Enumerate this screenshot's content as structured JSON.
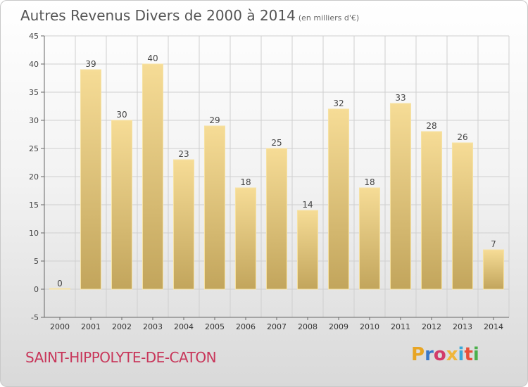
{
  "header": {
    "title": "Autres Revenus Divers de 2000 à 2014",
    "unit": "(en milliers d'€)"
  },
  "footer": {
    "commune": "SAINT-HIPPOLYTE-DE-CATON"
  },
  "logo": {
    "text": "Proxiti",
    "letters": [
      {
        "ch": "P",
        "color": "#e8a524"
      },
      {
        "ch": "r",
        "color": "#3a78c8"
      },
      {
        "ch": "o",
        "color": "#d23b6a"
      },
      {
        "ch": "x",
        "color": "#f0b63a"
      },
      {
        "ch": "i",
        "color": "#3aa9d8"
      },
      {
        "ch": "t",
        "color": "#e8503a"
      },
      {
        "ch": "i",
        "color": "#4bb04b"
      }
    ]
  },
  "chart_data": {
    "type": "bar",
    "title": "Autres Revenus Divers de 2000 à 2014",
    "ylabel": "",
    "xlabel": "",
    "categories": [
      "2000",
      "2001",
      "2002",
      "2003",
      "2004",
      "2005",
      "2006",
      "2007",
      "2008",
      "2009",
      "2010",
      "2011",
      "2012",
      "2013",
      "2014"
    ],
    "values": [
      0,
      39,
      30,
      40,
      23,
      29,
      18,
      25,
      14,
      32,
      18,
      33,
      28,
      26,
      7
    ],
    "ylim": [
      -5,
      45
    ],
    "yticks": [
      -5,
      0,
      5,
      10,
      15,
      20,
      25,
      30,
      35,
      40,
      45
    ],
    "grid": true,
    "colors": {
      "bar_top": "#f6dc96",
      "bar_bottom": "#c2a55c",
      "grid": "#cfcfcf"
    }
  }
}
